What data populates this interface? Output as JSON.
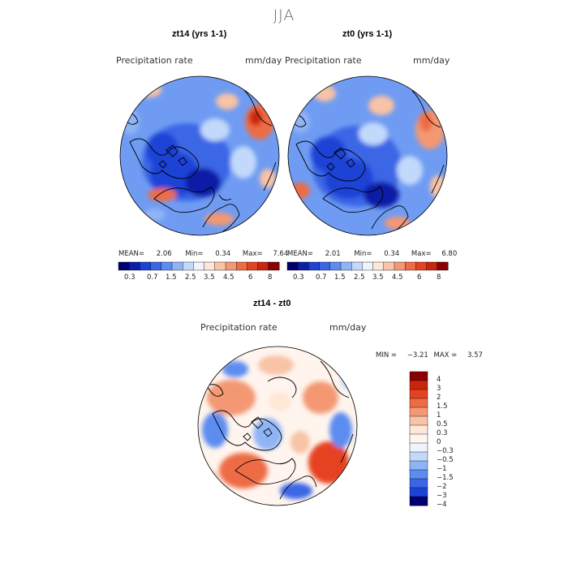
{
  "title": "JJA",
  "panels": [
    {
      "id": "zt14",
      "title": "zt14 (yrs 1-1)",
      "variable": "Precipitation rate",
      "units": "mm/day",
      "stats": {
        "mean_label": "MEAN=",
        "mean": "2.06",
        "min_label": "Min=",
        "min": "0.34",
        "max_label": "Max=",
        "max": "7.64"
      }
    },
    {
      "id": "zt0",
      "title": "zt0 (yrs 1-1)",
      "variable": "Precipitation rate",
      "units": "mm/day",
      "stats": {
        "mean_label": "MEAN=",
        "mean": "2.01",
        "min_label": "Min=",
        "min": "0.34",
        "max_label": "Max=",
        "max": "6.80"
      }
    }
  ],
  "precip_colorbar": {
    "ticks": [
      "0.3",
      "0.7",
      "1.5",
      "2.5",
      "3.5",
      "4.5",
      "6",
      "8"
    ],
    "colors": [
      "#000070",
      "#0b1fa6",
      "#1d43d6",
      "#3a66e6",
      "#5d8cf0",
      "#8fb4f6",
      "#c3d9fb",
      "#eef3fd",
      "#fde7d7",
      "#f8c3a6",
      "#f39873",
      "#ee6c45",
      "#e54221",
      "#c8260f",
      "#8b0000"
    ]
  },
  "diff_panel": {
    "title": "zt14 - zt0",
    "variable": "Precipitation rate",
    "units": "mm/day",
    "min_label": "MIN =",
    "min": "−3.21",
    "max_label": "MAX =",
    "max": "3.57"
  },
  "diff_colorbar": {
    "labels": [
      "4",
      "3",
      "2",
      "1.5",
      "1",
      "0.5",
      "0.3",
      "0",
      "−0.3",
      "−0.5",
      "−1",
      "−1.5",
      "−2",
      "−3",
      "−4"
    ],
    "colors": [
      "#8b0000",
      "#c8260f",
      "#e54221",
      "#ee6c45",
      "#f39873",
      "#f8c3a6",
      "#fde7d7",
      "#fff5ee",
      "#eef3fd",
      "#c3d9fb",
      "#8fb4f6",
      "#5d8cf0",
      "#3a66e6",
      "#1d43d6",
      "#000070"
    ]
  }
}
